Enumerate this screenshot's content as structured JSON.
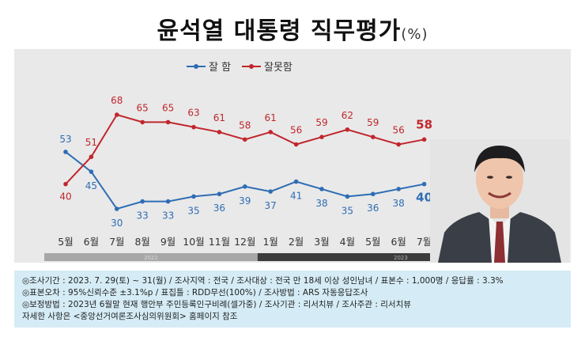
{
  "title": "윤석열 대통령 직무평가",
  "title_unit": "(%)",
  "chart_data": {
    "type": "line",
    "categories": [
      "5월",
      "6월",
      "7월",
      "8월",
      "9월",
      "10월",
      "11월",
      "12월",
      "1월",
      "2월",
      "3월",
      "4월",
      "5월",
      "6월",
      "7월"
    ],
    "year_bands": [
      "2022",
      "2023"
    ],
    "series": [
      {
        "name": "잘 함",
        "color": "#2e6db4",
        "values": [
          53,
          45,
          30,
          33,
          33,
          35,
          36,
          39,
          37,
          41,
          38,
          35,
          36,
          38,
          40
        ]
      },
      {
        "name": "잘못함",
        "color": "#c0272d",
        "values": [
          40,
          51,
          68,
          65,
          65,
          63,
          61,
          58,
          61,
          56,
          59,
          62,
          59,
          56,
          58
        ]
      }
    ],
    "legend_position": "top-center"
  },
  "notes": [
    "◎조사기간 : 2023. 7. 29(토) ~ 31(월) / 조사지역 : 전국 / 조사대상 : 전국 만 18세 이상 성인남녀 / 표본수 : 1,000명 / 응답률 : 3.3%",
    "◎표본오차 : 95%신뢰수준 ±3.1%p  / 표집틀 : RDD무선(100%) / 조사방법 : ARS 자동응답조사",
    "◎보정방법 : 2023년 6월말 현재 행안부 주민등록인구비례(셀가중) / 조사기관 : 리서치뷰 / 조사주관 : 리서치뷰",
    "자세한 사항은 <중앙선거여론조사심의위원회> 홈페이지 참조"
  ]
}
